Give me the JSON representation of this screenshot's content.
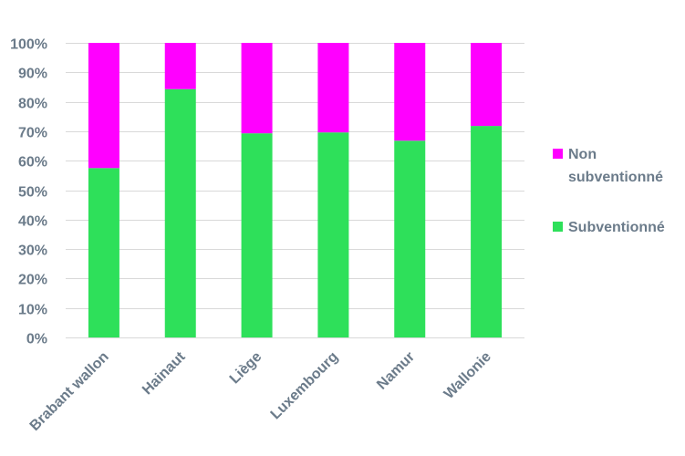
{
  "chart_data": {
    "type": "bar",
    "stacked": true,
    "percent": true,
    "categories": [
      "Brabant wallon",
      "Hainaut",
      "Liège",
      "Luxembourg",
      "Namur",
      "Wallonie"
    ],
    "series": [
      {
        "name": "Subventionné",
        "values": [
          57.5,
          84.3,
          69.3,
          69.6,
          66.8,
          71.8
        ],
        "color": "#2ee05a"
      },
      {
        "name": "Non subventionné",
        "values": [
          42.5,
          15.7,
          30.7,
          30.4,
          33.2,
          28.2
        ],
        "color": "#ff00ff"
      }
    ],
    "y_ticks": [
      "0%",
      "10%",
      "20%",
      "30%",
      "40%",
      "50%",
      "60%",
      "70%",
      "80%",
      "90%",
      "100%"
    ],
    "ylim": [
      0,
      100
    ],
    "grid": true,
    "legend_position": "right",
    "legend": [
      {
        "label_lines": [
          "Non",
          "subventionné"
        ],
        "color": "#ff00ff"
      },
      {
        "label_lines": [
          "Subventionné"
        ],
        "color": "#2ee05a"
      }
    ]
  }
}
